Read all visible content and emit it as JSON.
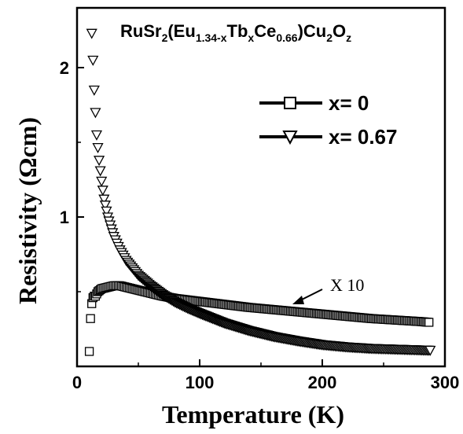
{
  "chart_data": {
    "type": "scatter",
    "title": "RuSr2(Eu1.34-xTbxCe0.66)Cu2Oz",
    "title_parts": [
      {
        "text": "RuSr",
        "sub": false
      },
      {
        "text": "2",
        "sub": true
      },
      {
        "text": "(Eu",
        "sub": false
      },
      {
        "text": "1.34-x",
        "sub": true
      },
      {
        "text": "Tb",
        "sub": false
      },
      {
        "text": "x",
        "sub": true
      },
      {
        "text": "Ce",
        "sub": false
      },
      {
        "text": "0.66",
        "sub": true
      },
      {
        "text": ")Cu",
        "sub": false
      },
      {
        "text": "2",
        "sub": true
      },
      {
        "text": "O",
        "sub": false
      },
      {
        "text": "z",
        "sub": true
      }
    ],
    "xlabel": "Temperature (K)",
    "ylabel": "Resistivity (Ωcm)",
    "xlim": [
      0,
      300
    ],
    "ylim": [
      0,
      2.4
    ],
    "xticks": [
      0,
      100,
      200,
      300
    ],
    "yticks": [
      1,
      2
    ],
    "legend_position": "top-right",
    "annotation": "X 10",
    "series": [
      {
        "name": "x= 0",
        "marker": "square",
        "x": [
          10,
          11,
          12,
          13,
          14,
          15,
          17,
          20,
          25,
          30,
          35,
          40,
          50,
          60,
          70,
          80,
          90,
          100,
          120,
          140,
          160,
          180,
          200,
          220,
          240,
          260,
          280,
          287
        ],
        "y": [
          0.1,
          0.32,
          0.42,
          0.46,
          0.47,
          0.47,
          0.5,
          0.52,
          0.53,
          0.54,
          0.54,
          0.53,
          0.51,
          0.49,
          0.47,
          0.455,
          0.445,
          0.435,
          0.415,
          0.395,
          0.38,
          0.365,
          0.35,
          0.335,
          0.32,
          0.31,
          0.3,
          0.295
        ]
      },
      {
        "name": "x= 0.67",
        "marker": "triangle-down",
        "x": [
          12,
          13,
          14,
          15,
          16,
          18,
          20,
          22,
          25,
          28,
          30,
          35,
          40,
          45,
          50,
          60,
          70,
          80,
          90,
          100,
          120,
          140,
          160,
          180,
          200,
          220,
          240,
          260,
          280,
          288
        ],
        "y": [
          2.23,
          2.05,
          1.85,
          1.7,
          1.55,
          1.38,
          1.24,
          1.12,
          1.0,
          0.92,
          0.87,
          0.78,
          0.71,
          0.66,
          0.61,
          0.54,
          0.48,
          0.43,
          0.39,
          0.355,
          0.29,
          0.24,
          0.2,
          0.17,
          0.145,
          0.13,
          0.12,
          0.115,
          0.11,
          0.108
        ]
      }
    ]
  }
}
